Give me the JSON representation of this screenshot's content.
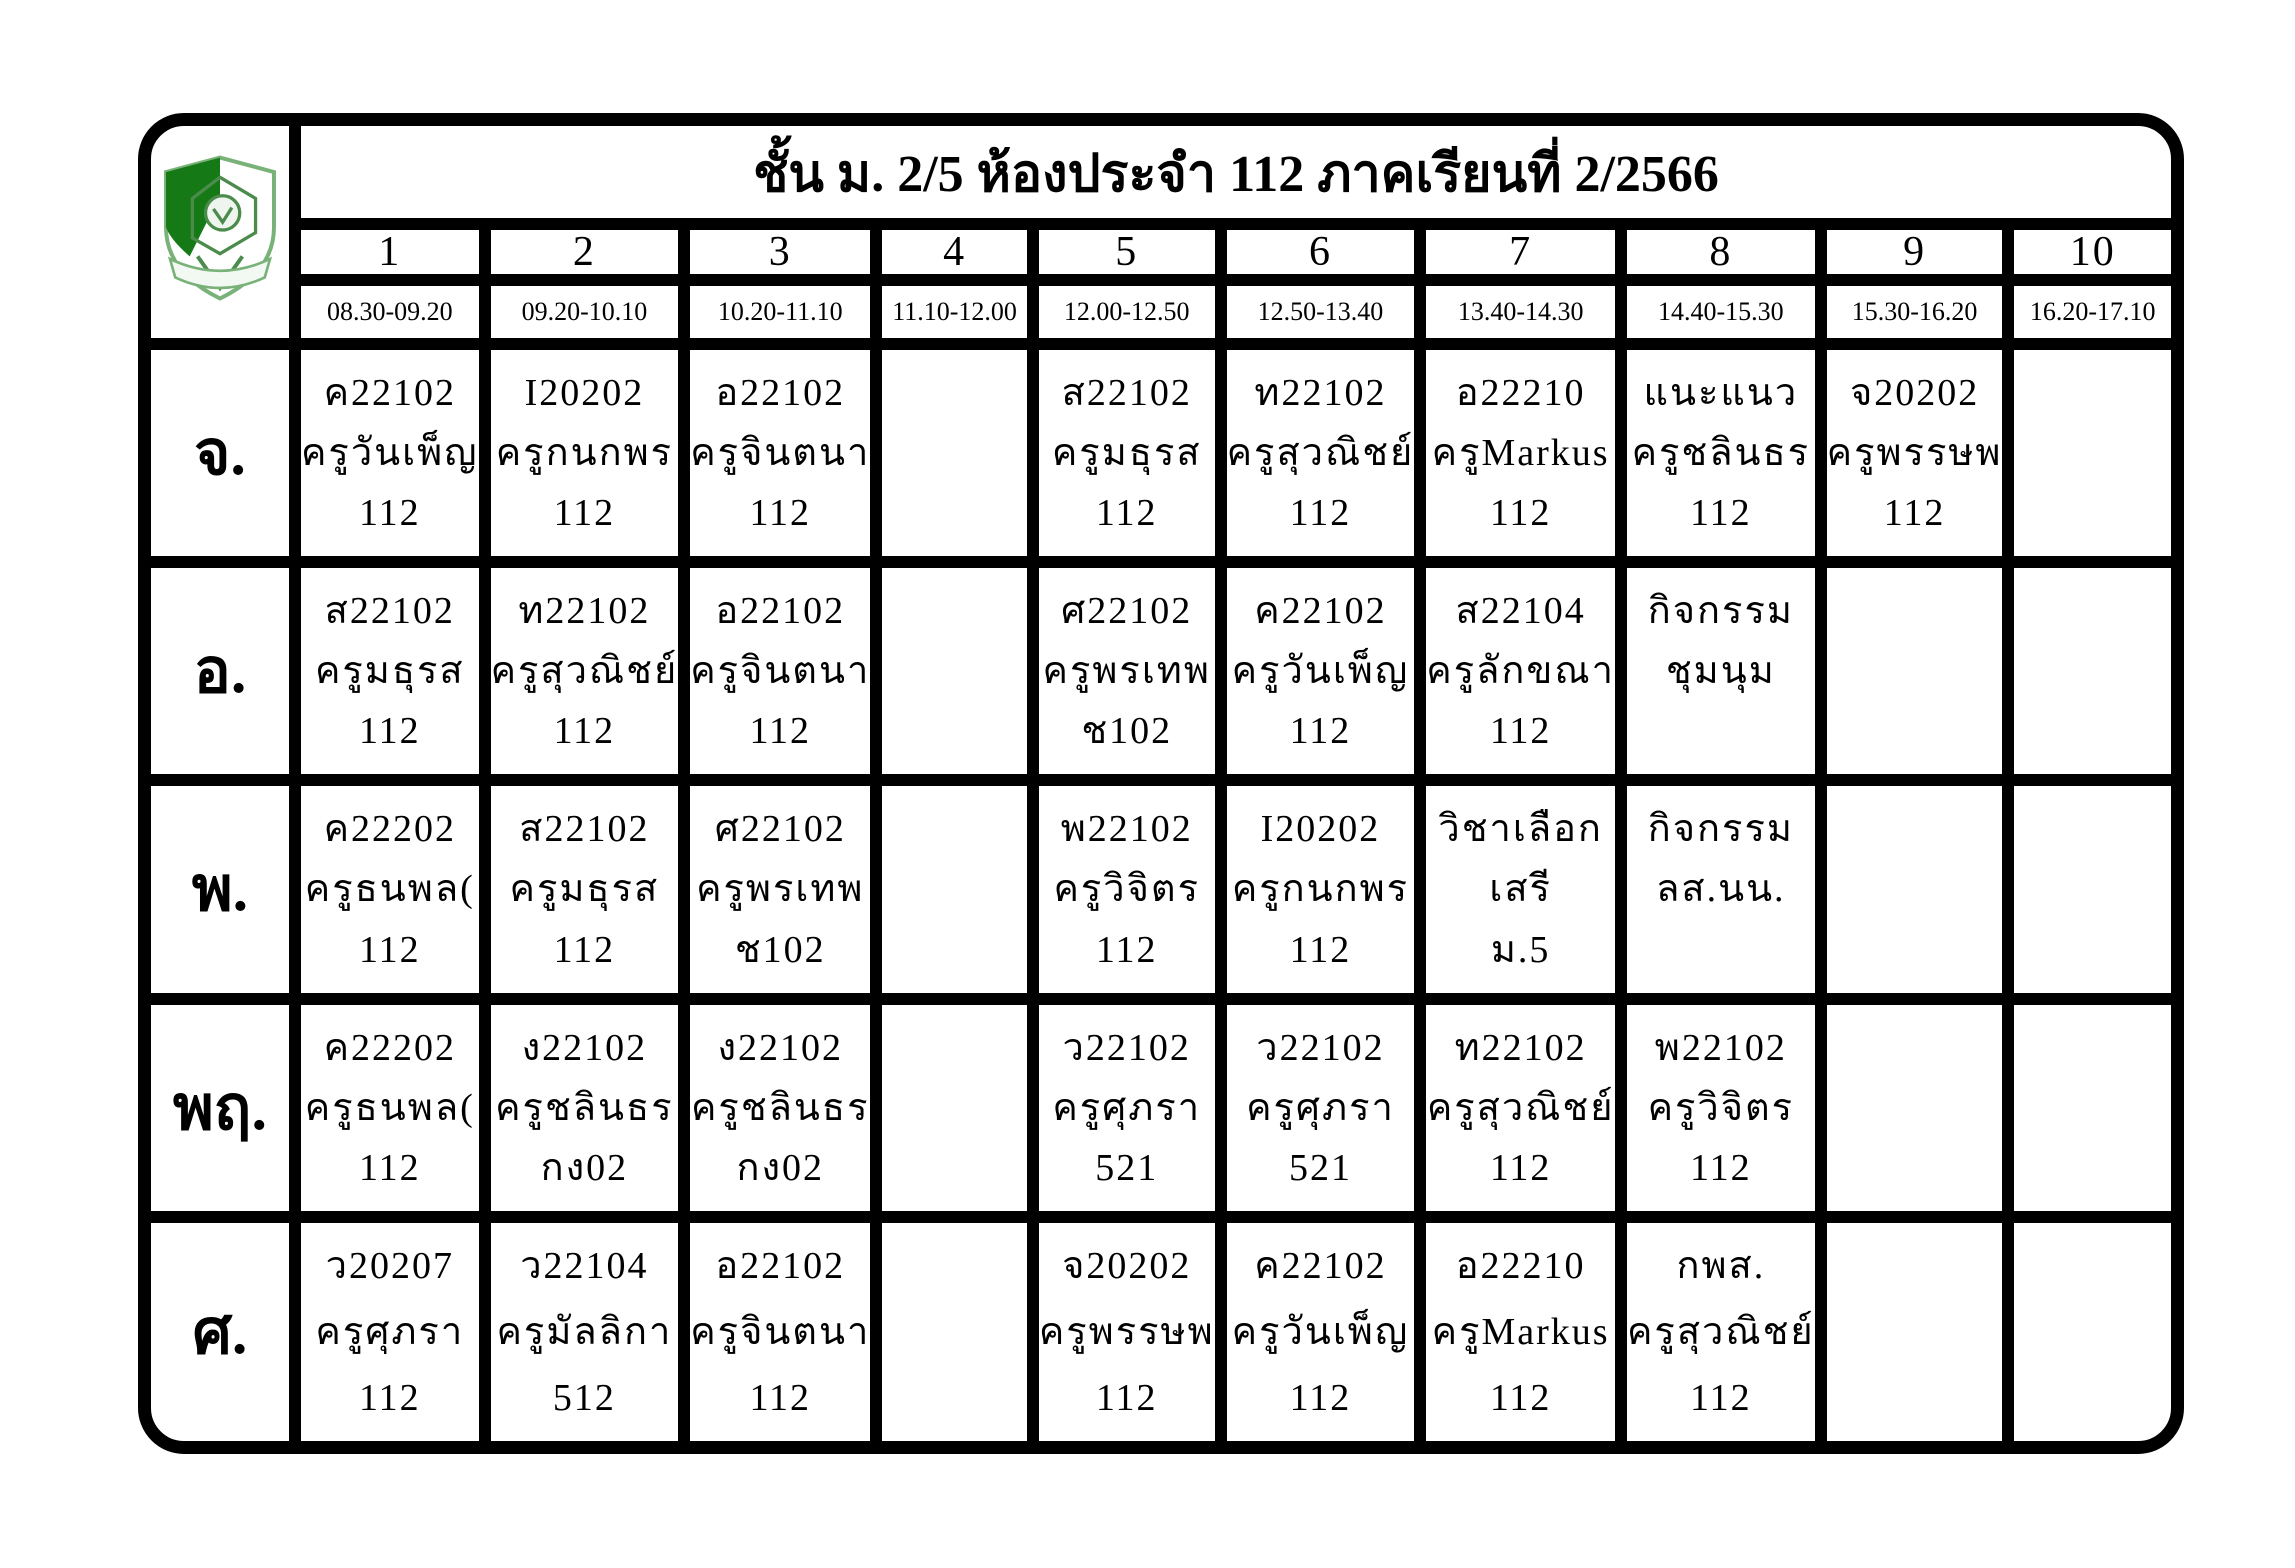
{
  "title": "ชั้น ม. 2/5 ห้องประจำ 112 ภาคเรียนที่ 2/2566",
  "logo": {
    "icon": "school-crest-icon",
    "green_dark": "#157a15",
    "green_light": "#79b279"
  },
  "colors": {
    "border": "#000000",
    "background": "#ffffff"
  },
  "periods": [
    {
      "no": "1",
      "time": "08.30-09.20"
    },
    {
      "no": "2",
      "time": "09.20-10.10"
    },
    {
      "no": "3",
      "time": "10.20-11.10"
    },
    {
      "no": "4",
      "time": "11.10-12.00"
    },
    {
      "no": "5",
      "time": "12.00-12.50"
    },
    {
      "no": "6",
      "time": "12.50-13.40"
    },
    {
      "no": "7",
      "time": "13.40-14.30"
    },
    {
      "no": "8",
      "time": "14.40-15.30"
    },
    {
      "no": "9",
      "time": "15.30-16.20"
    },
    {
      "no": "10",
      "time": "16.20-17.10"
    }
  ],
  "days": [
    {
      "label": "จ.",
      "cells": [
        [
          "ค22102",
          "ครูวันเพ็ญ",
          "112"
        ],
        [
          "I20202",
          "ครูกนกพร",
          "112"
        ],
        [
          "อ22102",
          "ครูจินตนา",
          "112"
        ],
        [
          "",
          "",
          ""
        ],
        [
          "ส22102",
          "ครูมธุรส",
          "112"
        ],
        [
          "ท22102",
          "ครูสุวณิชย์",
          "112"
        ],
        [
          "อ22210",
          "ครูMarkus",
          "112"
        ],
        [
          "แนะแนว",
          "ครูชลินธร",
          "112"
        ],
        [
          "จ20202",
          "ครูพรรษพ",
          "112"
        ],
        [
          "",
          "",
          ""
        ]
      ]
    },
    {
      "label": "อ.",
      "cells": [
        [
          "ส22102",
          "ครูมธุรส",
          "112"
        ],
        [
          "ท22102",
          "ครูสุวณิชย์",
          "112"
        ],
        [
          "อ22102",
          "ครูจินตนา",
          "112"
        ],
        [
          "",
          "",
          ""
        ],
        [
          "ศ22102",
          "ครูพรเทพ",
          "ช102"
        ],
        [
          "ค22102",
          "ครูวันเพ็ญ",
          "112"
        ],
        [
          "ส22104",
          "ครูลักขณา",
          "112"
        ],
        [
          "กิจกรรม",
          "ชุมนุม",
          ""
        ],
        [
          "",
          "",
          ""
        ],
        [
          "",
          "",
          ""
        ]
      ]
    },
    {
      "label": "พ.",
      "cells": [
        [
          "ค22202",
          "ครูธนพล(",
          "112"
        ],
        [
          "ส22102",
          "ครูมธุรส",
          "112"
        ],
        [
          "ศ22102",
          "ครูพรเทพ",
          "ช102"
        ],
        [
          "",
          "",
          ""
        ],
        [
          "พ22102",
          "ครูวิจิตร",
          "112"
        ],
        [
          "I20202",
          "ครูกนกพร",
          "112"
        ],
        [
          "วิชาเลือก",
          "เสรี",
          "ม.5"
        ],
        [
          "กิจกรรม",
          "ลส.นน.",
          ""
        ],
        [
          "",
          "",
          ""
        ],
        [
          "",
          "",
          ""
        ]
      ]
    },
    {
      "label": "พฤ.",
      "cells": [
        [
          "ค22202",
          "ครูธนพล(",
          "112"
        ],
        [
          "ง22102",
          "ครูชลินธร",
          "กง02"
        ],
        [
          "ง22102",
          "ครูชลินธร",
          "กง02"
        ],
        [
          "",
          "",
          ""
        ],
        [
          "ว22102",
          "ครูศุภรา",
          "521"
        ],
        [
          "ว22102",
          "ครูศุภรา",
          "521"
        ],
        [
          "ท22102",
          "ครูสุวณิชย์",
          "112"
        ],
        [
          "พ22102",
          "ครูวิจิตร",
          "112"
        ],
        [
          "",
          "",
          ""
        ],
        [
          "",
          "",
          ""
        ]
      ]
    },
    {
      "label": "ศ.",
      "cells": [
        [
          "ว20207",
          "ครูศุภรา",
          "112"
        ],
        [
          "ว22104",
          "ครูมัลลิกา",
          "512"
        ],
        [
          "อ22102",
          "ครูจินตนา",
          "112"
        ],
        [
          "",
          "",
          ""
        ],
        [
          "จ20202",
          "ครูพรรษพ",
          "112"
        ],
        [
          "ค22102",
          "ครูวันเพ็ญ",
          "112"
        ],
        [
          "อ22210",
          "ครูMarkus",
          "112"
        ],
        [
          "กพส.",
          "ครูสุวณิชย์",
          "112"
        ],
        [
          "",
          "",
          ""
        ],
        [
          "",
          "",
          ""
        ]
      ]
    }
  ]
}
